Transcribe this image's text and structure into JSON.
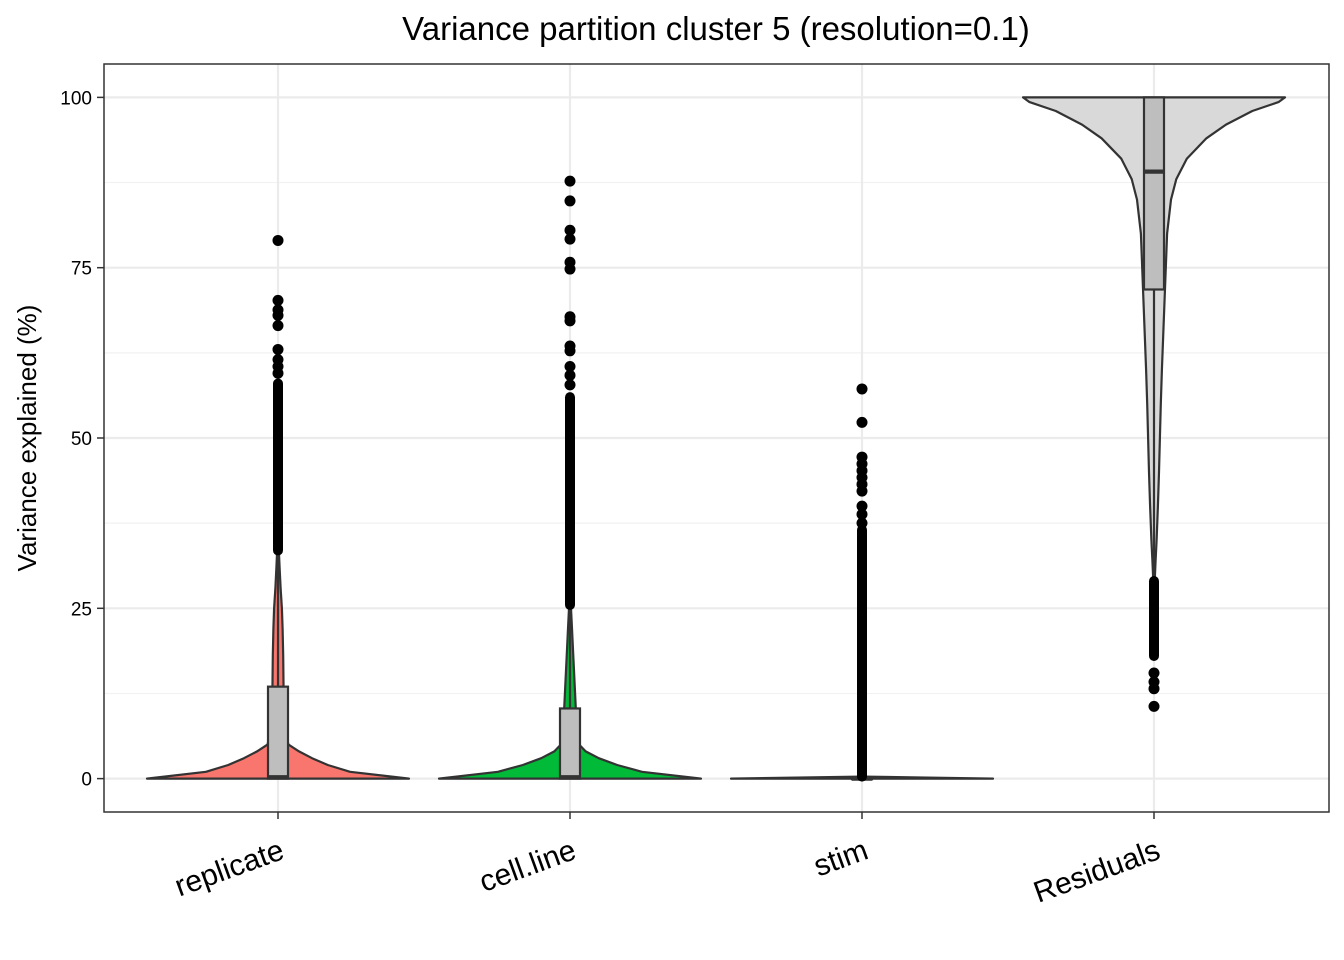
{
  "chart_data": {
    "type": "violin",
    "title": "Variance partition cluster 5 (resolution=0.1)",
    "xlabel": "",
    "ylabel": "Variance explained (%)",
    "ylim": [
      -4.9,
      104.9
    ],
    "yticks": [
      0,
      25,
      50,
      75,
      100
    ],
    "ytick_labels": [
      "0",
      "25",
      "50",
      "75",
      "100"
    ],
    "grid": true,
    "legend": "none",
    "categories": [
      "replicate",
      "cell.line",
      "stim",
      "Residuals"
    ],
    "series": [
      {
        "category": "replicate",
        "fill": "#F8766D",
        "box": {
          "min": 0,
          "q1": 0,
          "median": 0.2,
          "q3": 13.5,
          "whisker_high": 33
        },
        "outlier_band": [
          33.5,
          58
        ],
        "outliers": [
          79,
          70.2,
          68.8,
          68,
          66.5,
          63,
          61.5,
          60.5,
          59.5
        ],
        "density": [
          [
            0,
            1.0
          ],
          [
            1,
            0.55
          ],
          [
            2,
            0.38
          ],
          [
            3,
            0.26
          ],
          [
            4,
            0.16
          ],
          [
            5,
            0.08
          ],
          [
            7,
            0.055
          ],
          [
            10,
            0.045
          ],
          [
            14,
            0.042
          ],
          [
            18,
            0.04
          ],
          [
            22,
            0.035
          ],
          [
            25,
            0.03
          ],
          [
            28,
            0.02
          ],
          [
            31,
            0.012
          ],
          [
            33,
            0.008
          ]
        ]
      },
      {
        "category": "cell.line",
        "fill": "#00BA38",
        "box": {
          "min": 0,
          "q1": 0,
          "median": 0.2,
          "q3": 10.3,
          "whisker_high": 25
        },
        "outlier_band": [
          25.5,
          56
        ],
        "outliers": [
          87.7,
          84.8,
          80.5,
          79.2,
          75.8,
          74.8,
          67.8,
          67.2,
          63.5,
          62.8,
          60.5,
          59.2,
          57.8
        ],
        "density": [
          [
            0,
            1.0
          ],
          [
            1,
            0.55
          ],
          [
            2,
            0.36
          ],
          [
            3,
            0.22
          ],
          [
            4,
            0.12
          ],
          [
            5,
            0.07
          ],
          [
            7,
            0.055
          ],
          [
            10,
            0.045
          ],
          [
            14,
            0.035
          ],
          [
            18,
            0.025
          ],
          [
            22,
            0.015
          ],
          [
            25,
            0.008
          ]
        ]
      },
      {
        "category": "stim",
        "fill": "#619CFF",
        "box": {
          "min": 0,
          "q1": 0,
          "median": 0,
          "q3": 0.05,
          "whisker_high": 0.1
        },
        "outlier_band": [
          0.3,
          36.5
        ],
        "outliers": [
          57.2,
          52.3,
          47.2,
          46.2,
          45.2,
          44.2,
          43.2,
          42.2,
          40,
          38.8,
          37.5
        ],
        "density": [
          [
            0,
            1.0
          ],
          [
            0.15,
            0.5
          ],
          [
            0.3,
            0.0
          ]
        ]
      },
      {
        "category": "Residuals",
        "fill": "#D9D9D9",
        "box": {
          "min": 29.5,
          "q1": 71.8,
          "median": 89.1,
          "q3": 100,
          "whisker_high": 100
        },
        "outlier_band": [
          18,
          29
        ],
        "outliers": [
          15.5,
          14.2,
          13.2,
          10.6
        ],
        "density": [
          [
            29,
            0.005
          ],
          [
            32,
            0.012
          ],
          [
            35,
            0.02
          ],
          [
            40,
            0.03
          ],
          [
            45,
            0.038
          ],
          [
            50,
            0.045
          ],
          [
            55,
            0.052
          ],
          [
            60,
            0.06
          ],
          [
            65,
            0.07
          ],
          [
            70,
            0.08
          ],
          [
            75,
            0.09
          ],
          [
            80,
            0.1
          ],
          [
            85,
            0.13
          ],
          [
            88,
            0.17
          ],
          [
            91,
            0.25
          ],
          [
            94,
            0.4
          ],
          [
            96,
            0.55
          ],
          [
            98,
            0.75
          ],
          [
            99.3,
            0.95
          ],
          [
            100,
            1.0
          ]
        ]
      }
    ]
  }
}
